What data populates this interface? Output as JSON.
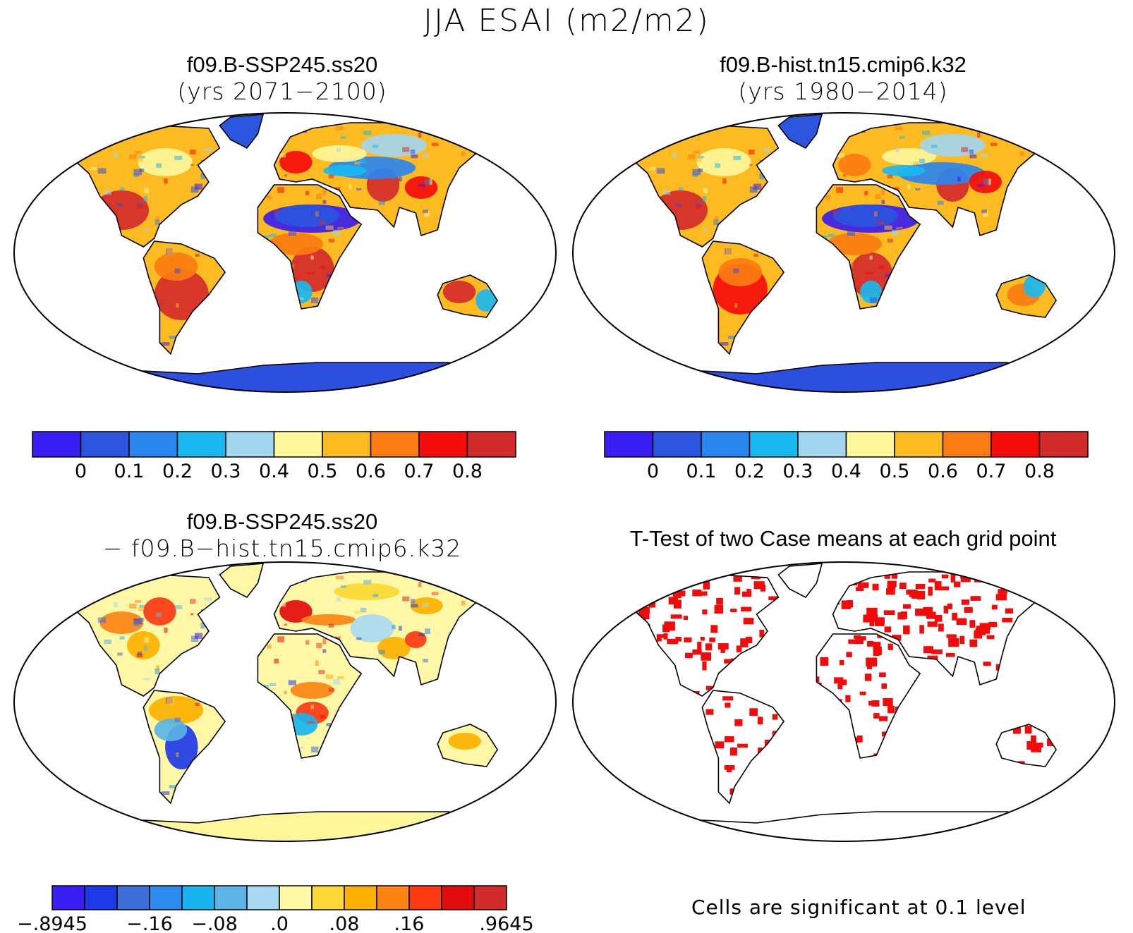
{
  "title": "JJA ESAI (m2/m2)",
  "panels": [
    {
      "id": "tl",
      "name": "f09.B-SSP245.ss20",
      "sub": "(yrs 2071−2100)"
    },
    {
      "id": "tr",
      "name": "f09.B-hist.tn15.cmip6.k32",
      "sub": "(yrs 1980−2014)"
    },
    {
      "id": "bl",
      "name": "f09.B-SSP245.ss20",
      "sub": "− f09.B−hist.tn15.cmip6.k32"
    },
    {
      "id": "br",
      "name": "T-Test of two Case means at each grid point",
      "sub": ""
    }
  ],
  "colorbar_abs": {
    "colors": [
      "#3a1df0",
      "#2b55dd",
      "#2a86ef",
      "#1ab8f0",
      "#a3d5ee",
      "#fef69a",
      "#fdbb22",
      "#fb7c12",
      "#f50c0c",
      "#d22b2b"
    ],
    "labels": [
      "0",
      "0.1",
      "0.2",
      "0.3",
      "0.4",
      "0.5",
      "0.6",
      "0.7",
      "0.8"
    ]
  },
  "colorbar_diff": {
    "colors": [
      "#3a1df0",
      "#1e39e8",
      "#3e6fd8",
      "#2d8bef",
      "#18b4f0",
      "#5bb4e4",
      "#a9d9f2",
      "#fef7a6",
      "#fed834",
      "#fcb100",
      "#fb8412",
      "#fb3a11",
      "#e30c0c",
      "#d22b2b"
    ],
    "labels": [
      "−.8945",
      "−.16",
      "−.08",
      ".0",
      ".08",
      ".16",
      ".9645"
    ]
  },
  "significance_note": "Cells are significant at 0.1 level",
  "colors": {
    "ocean": "#ffffff",
    "coast": "#000000",
    "antarctica_abs": "#2d4fe0",
    "antarctica_diff": "#fef69a",
    "significant": "#f20b0b"
  }
}
